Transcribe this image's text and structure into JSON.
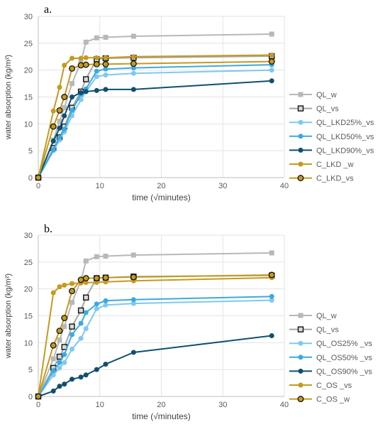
{
  "chart_data": [
    {
      "type": "line",
      "panel_label": "a.",
      "xlabel": "time (√minutes)",
      "ylabel": "water absorption (kg/m²)",
      "xlim": [
        0,
        40
      ],
      "ylim": [
        0,
        30
      ],
      "xticks": [
        0,
        10,
        20,
        30,
        40
      ],
      "yticks": [
        0,
        5,
        10,
        15,
        20,
        25,
        30
      ],
      "grid": true,
      "legend_position": "right",
      "series": [
        {
          "name": "QL_w",
          "color": "#b8b8b8",
          "marker": "square",
          "x": [
            0,
            2.45,
            3.46,
            4.24,
            5.48,
            6.93,
            7.75,
            9.49,
            10.95,
            15.49,
            37.95
          ],
          "y": [
            0,
            7.0,
            10.5,
            13.0,
            17.5,
            21.5,
            25.2,
            26.0,
            26.1,
            26.3,
            26.7
          ]
        },
        {
          "name": "QL_vs",
          "color": "#a6a6a6",
          "marker": "square-outline",
          "x": [
            0,
            2.45,
            3.46,
            4.24,
            5.48,
            6.93,
            7.75,
            9.49,
            10.95,
            15.49,
            37.95
          ],
          "y": [
            0,
            5.5,
            7.5,
            9.5,
            13.0,
            16.0,
            18.3,
            22.0,
            22.2,
            22.3,
            22.6
          ]
        },
        {
          "name": "QL_LKD25%_vs",
          "color": "#7fc8ee",
          "marker": "circle",
          "x": [
            0,
            2.45,
            3.46,
            4.24,
            5.48,
            6.93,
            7.75,
            9.49,
            10.95,
            15.49,
            37.95
          ],
          "y": [
            0,
            5.0,
            7.0,
            8.5,
            11.5,
            14.5,
            16.0,
            18.8,
            19.1,
            19.4,
            20.0
          ]
        },
        {
          "name": "QL_LKD50%_vs",
          "color": "#3aaae0",
          "marker": "circle",
          "x": [
            0,
            2.45,
            3.46,
            4.24,
            5.48,
            6.93,
            7.75,
            9.49,
            10.95,
            15.49,
            37.95
          ],
          "y": [
            0,
            5.2,
            7.5,
            9.0,
            12.5,
            15.5,
            16.5,
            19.8,
            20.2,
            20.4,
            21.0
          ]
        },
        {
          "name": "QL_LKD90%_vs",
          "color": "#0f4f6f",
          "marker": "circle",
          "x": [
            0,
            2.45,
            3.46,
            4.24,
            5.48,
            6.93,
            7.75,
            9.49,
            10.95,
            15.49,
            37.95
          ],
          "y": [
            0,
            6.8,
            9.2,
            11.5,
            15.0,
            15.8,
            16.0,
            16.2,
            16.4,
            16.4,
            18.0
          ]
        },
        {
          "name": "C_LKD _w",
          "color": "#c59a1e",
          "marker": "circle",
          "x": [
            0,
            2.45,
            3.46,
            4.24,
            5.48,
            6.93,
            7.75,
            9.49,
            10.95,
            15.49,
            37.95
          ],
          "y": [
            0,
            12.4,
            16.8,
            20.9,
            22.2,
            22.2,
            22.3,
            22.3,
            22.3,
            22.5,
            22.8
          ]
        },
        {
          "name": "C_LKD_vs",
          "color": "#c59a1e",
          "marker": "circle-outline",
          "x": [
            0,
            2.45,
            3.46,
            4.24,
            5.48,
            6.93,
            7.75,
            9.49,
            10.95,
            15.49,
            37.95
          ],
          "y": [
            0,
            9.5,
            12.5,
            15.0,
            20.3,
            20.9,
            21.0,
            21.1,
            21.1,
            21.2,
            21.6
          ]
        }
      ]
    },
    {
      "type": "line",
      "panel_label": "b.",
      "xlabel": "time (√minutes)",
      "ylabel": "water absorption (kg/m²)",
      "xlim": [
        0,
        40
      ],
      "ylim": [
        0,
        30
      ],
      "xticks": [
        0,
        10,
        20,
        30,
        40
      ],
      "yticks": [
        0,
        5,
        10,
        15,
        20,
        25,
        30
      ],
      "grid": true,
      "legend_position": "right",
      "series": [
        {
          "name": "QL_w",
          "color": "#b8b8b8",
          "marker": "square",
          "x": [
            0,
            2.45,
            3.46,
            4.24,
            5.48,
            6.93,
            7.75,
            9.49,
            10.95,
            15.49,
            37.95
          ],
          "y": [
            0,
            7.0,
            10.5,
            13.0,
            17.5,
            21.5,
            25.2,
            26.0,
            26.1,
            26.3,
            26.7
          ]
        },
        {
          "name": "QL_vs",
          "color": "#a6a6a6",
          "marker": "square-outline",
          "x": [
            0,
            2.45,
            3.46,
            4.24,
            5.48,
            6.93,
            7.75,
            9.49,
            10.95,
            15.49,
            37.95
          ],
          "y": [
            0,
            5.3,
            7.4,
            9.2,
            13.0,
            16.0,
            18.4,
            22.0,
            22.1,
            22.3,
            22.5
          ]
        },
        {
          "name": "QL_OS25% _vs",
          "color": "#7fc8ee",
          "marker": "circle",
          "x": [
            0,
            2.45,
            3.46,
            4.24,
            5.48,
            6.93,
            7.75,
            9.49,
            10.95,
            15.49,
            37.95
          ],
          "y": [
            0,
            4.0,
            5.3,
            6.3,
            8.8,
            10.8,
            12.6,
            16.3,
            17.0,
            17.3,
            17.9
          ]
        },
        {
          "name": "QL_OS50% _vs",
          "color": "#3aaae0",
          "marker": "circle",
          "x": [
            0,
            2.45,
            3.46,
            4.24,
            5.48,
            6.93,
            7.75,
            9.49,
            10.95,
            15.49,
            37.95
          ],
          "y": [
            0,
            4.8,
            6.3,
            7.8,
            11.5,
            13.6,
            15.6,
            17.2,
            17.8,
            18.0,
            18.6
          ]
        },
        {
          "name": "QL_OS90% _vs",
          "color": "#0f4f6f",
          "marker": "circle",
          "x": [
            0,
            2.45,
            3.46,
            4.24,
            5.48,
            6.93,
            7.75,
            9.49,
            10.95,
            15.49,
            37.95
          ],
          "y": [
            0,
            1.0,
            1.9,
            2.3,
            3.2,
            3.6,
            4.0,
            5.0,
            6.0,
            8.2,
            11.3
          ]
        },
        {
          "name": "C_OS _vs",
          "color": "#c59a1e",
          "marker": "circle",
          "x": [
            0,
            2.45,
            3.46,
            4.24,
            5.48,
            6.93,
            7.75,
            9.49,
            10.95,
            15.49,
            37.95
          ],
          "y": [
            0,
            19.3,
            20.4,
            20.7,
            21.0,
            21.1,
            21.2,
            21.2,
            21.3,
            21.5,
            22.1
          ]
        },
        {
          "name": "C_OS _w",
          "color": "#c59a1e",
          "marker": "circle-outline",
          "x": [
            0,
            2.45,
            3.46,
            4.24,
            5.48,
            6.93,
            7.75,
            9.49,
            10.95,
            15.49,
            37.95
          ],
          "y": [
            0,
            9.5,
            12.2,
            14.6,
            19.6,
            21.7,
            22.0,
            22.0,
            22.1,
            22.2,
            22.6
          ]
        }
      ]
    }
  ]
}
